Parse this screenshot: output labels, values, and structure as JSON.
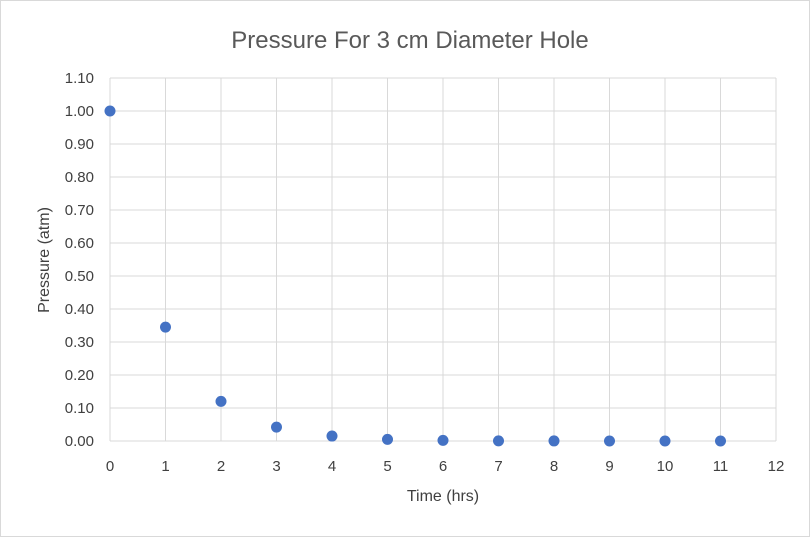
{
  "chart_data": {
    "type": "scatter",
    "title": "Pressure For 3 cm Diameter Hole",
    "xlabel": "Time (hrs)",
    "ylabel": "Pressure (atm)",
    "xlim": [
      0,
      12
    ],
    "ylim": [
      0,
      1.1
    ],
    "x_ticks": [
      "0",
      "1",
      "2",
      "3",
      "4",
      "5",
      "6",
      "7",
      "8",
      "9",
      "10",
      "11",
      "12"
    ],
    "y_ticks": [
      "0.00",
      "0.10",
      "0.20",
      "0.30",
      "0.40",
      "0.50",
      "0.60",
      "0.70",
      "0.80",
      "0.90",
      "1.00",
      "1.10"
    ],
    "grid": true,
    "legend": "none",
    "marker_color": "#4472c4",
    "gridline_color": "#d9d9d9",
    "series": [
      {
        "x": [
          0,
          1,
          2,
          3,
          4,
          5,
          6,
          7,
          8,
          9,
          10,
          11
        ],
        "y": [
          1.0,
          0.345,
          0.12,
          0.042,
          0.015,
          0.005,
          0.002,
          0.0005,
          0.0002,
          0.0001,
          0.0,
          0.0
        ]
      }
    ]
  }
}
